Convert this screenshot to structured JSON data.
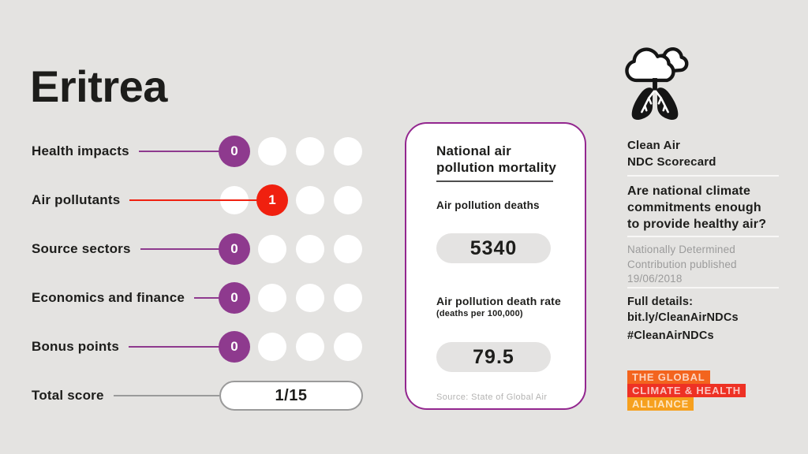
{
  "canvas": {
    "background": "#e4e3e1",
    "text_color": "#1d1d1b"
  },
  "country_title": "Eritrea",
  "scorecard": {
    "dots_per_row": 4,
    "inactive_dot_color": "#ffffff",
    "rows": [
      {
        "label": "Health impacts",
        "score": "0",
        "active_index": 0,
        "color": "#8e3a8e"
      },
      {
        "label": "Air pollutants",
        "score": "1",
        "active_index": 1,
        "color": "#f0200f"
      },
      {
        "label": "Source sectors",
        "score": "0",
        "active_index": 0,
        "color": "#8e3a8e"
      },
      {
        "label": "Economics and finance",
        "score": "0",
        "active_index": 0,
        "color": "#8e3a8e"
      },
      {
        "label": "Bonus points",
        "score": "0",
        "active_index": 0,
        "color": "#8e3a8e"
      }
    ],
    "total": {
      "label": "Total score",
      "value": "1/15",
      "line_color": "#9a9a9a"
    }
  },
  "mortality_card": {
    "border_color": "#93278f",
    "title_lines": [
      "National air",
      "pollution mortality"
    ],
    "deaths_label": "Air pollution deaths",
    "deaths_value": "5340",
    "rate_label": "Air pollution death rate",
    "rate_sublabel": "(deaths per 100,000)",
    "rate_value": "79.5",
    "source": "Source: State of Global Air"
  },
  "sidebar": {
    "icon": "cloud-lungs-icon",
    "program_title_lines": [
      "Clean Air",
      "NDC Scorecard"
    ],
    "question_lines": [
      "Are national climate",
      "commitments enough",
      "to provide healthy air?"
    ],
    "ndc_note_lines": [
      "Nationally Determined",
      "Contribution published",
      "19/06/2018"
    ],
    "details_label": "Full details:",
    "details_link": "bit.ly/CleanAirNDCs",
    "hashtag": "#CleanAirNDCs",
    "alliance_logo_lines": [
      {
        "text": "THE GLOBAL",
        "bg": "#f3641e"
      },
      {
        "text": "CLIMATE & HEALTH",
        "bg": "#ee3124"
      },
      {
        "text": "ALLIANCE",
        "bg": "#f6a01e"
      }
    ]
  }
}
